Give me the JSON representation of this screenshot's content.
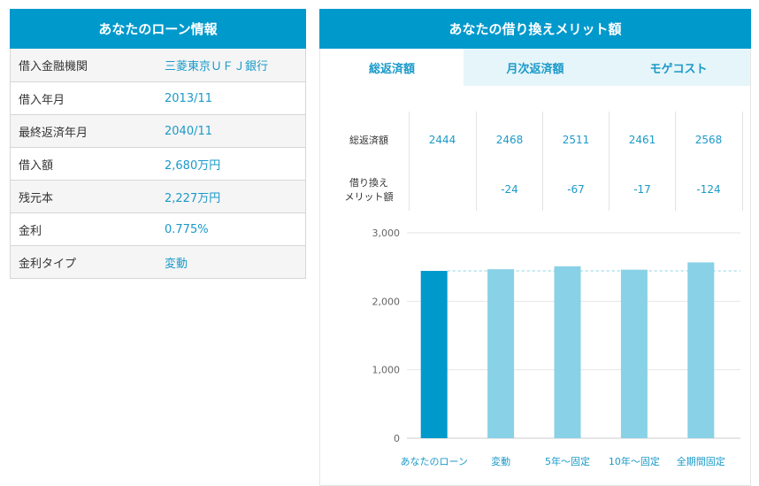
{
  "loan_info": {
    "title": "あなたのローン情報",
    "rows": [
      {
        "label": "借入金融機関",
        "value": "三菱東京ＵＦＪ銀行"
      },
      {
        "label": "借入年月",
        "value": "2013/11"
      },
      {
        "label": "最終返済年月",
        "value": "2040/11"
      },
      {
        "label": "借入額",
        "value": "2,680万円"
      },
      {
        "label": "残元本",
        "value": "2,227万円"
      },
      {
        "label": "金利",
        "value": "0.775%"
      },
      {
        "label": "金利タイプ",
        "value": "変動"
      }
    ]
  },
  "merit": {
    "title": "あなたの借り換えメリット額",
    "tabs": [
      {
        "label": "総返済額",
        "active": true
      },
      {
        "label": "月次返済額",
        "active": false
      },
      {
        "label": "モゲコスト",
        "active": false
      }
    ],
    "summary": {
      "row1_label": "総返済額",
      "row2_label": "借り換え\nメリット額",
      "totals": [
        "2444",
        "2468",
        "2511",
        "2461",
        "2568"
      ],
      "merits": [
        "",
        "-24",
        "-67",
        "-17",
        "-124"
      ]
    }
  },
  "colors": {
    "header": "#0099cc",
    "accent_text": "#1a9ac9",
    "bar_primary": "#0099cc",
    "bar_secondary": "#88d1e6",
    "tab_inactive_bg": "#e6f5f9"
  },
  "chart_data": {
    "type": "bar",
    "categories": [
      "あなたのローン",
      "変動",
      "5年～固定",
      "10年～固定",
      "全期間固定"
    ],
    "values": [
      2444,
      2468,
      2511,
      2461,
      2568
    ],
    "ylim": [
      0,
      3000
    ],
    "yticks": [
      "0",
      "1,000",
      "2,000",
      "3,000"
    ],
    "ytick_values": [
      0,
      1000,
      2000,
      3000
    ],
    "reference_line": 2444,
    "grid": true
  }
}
